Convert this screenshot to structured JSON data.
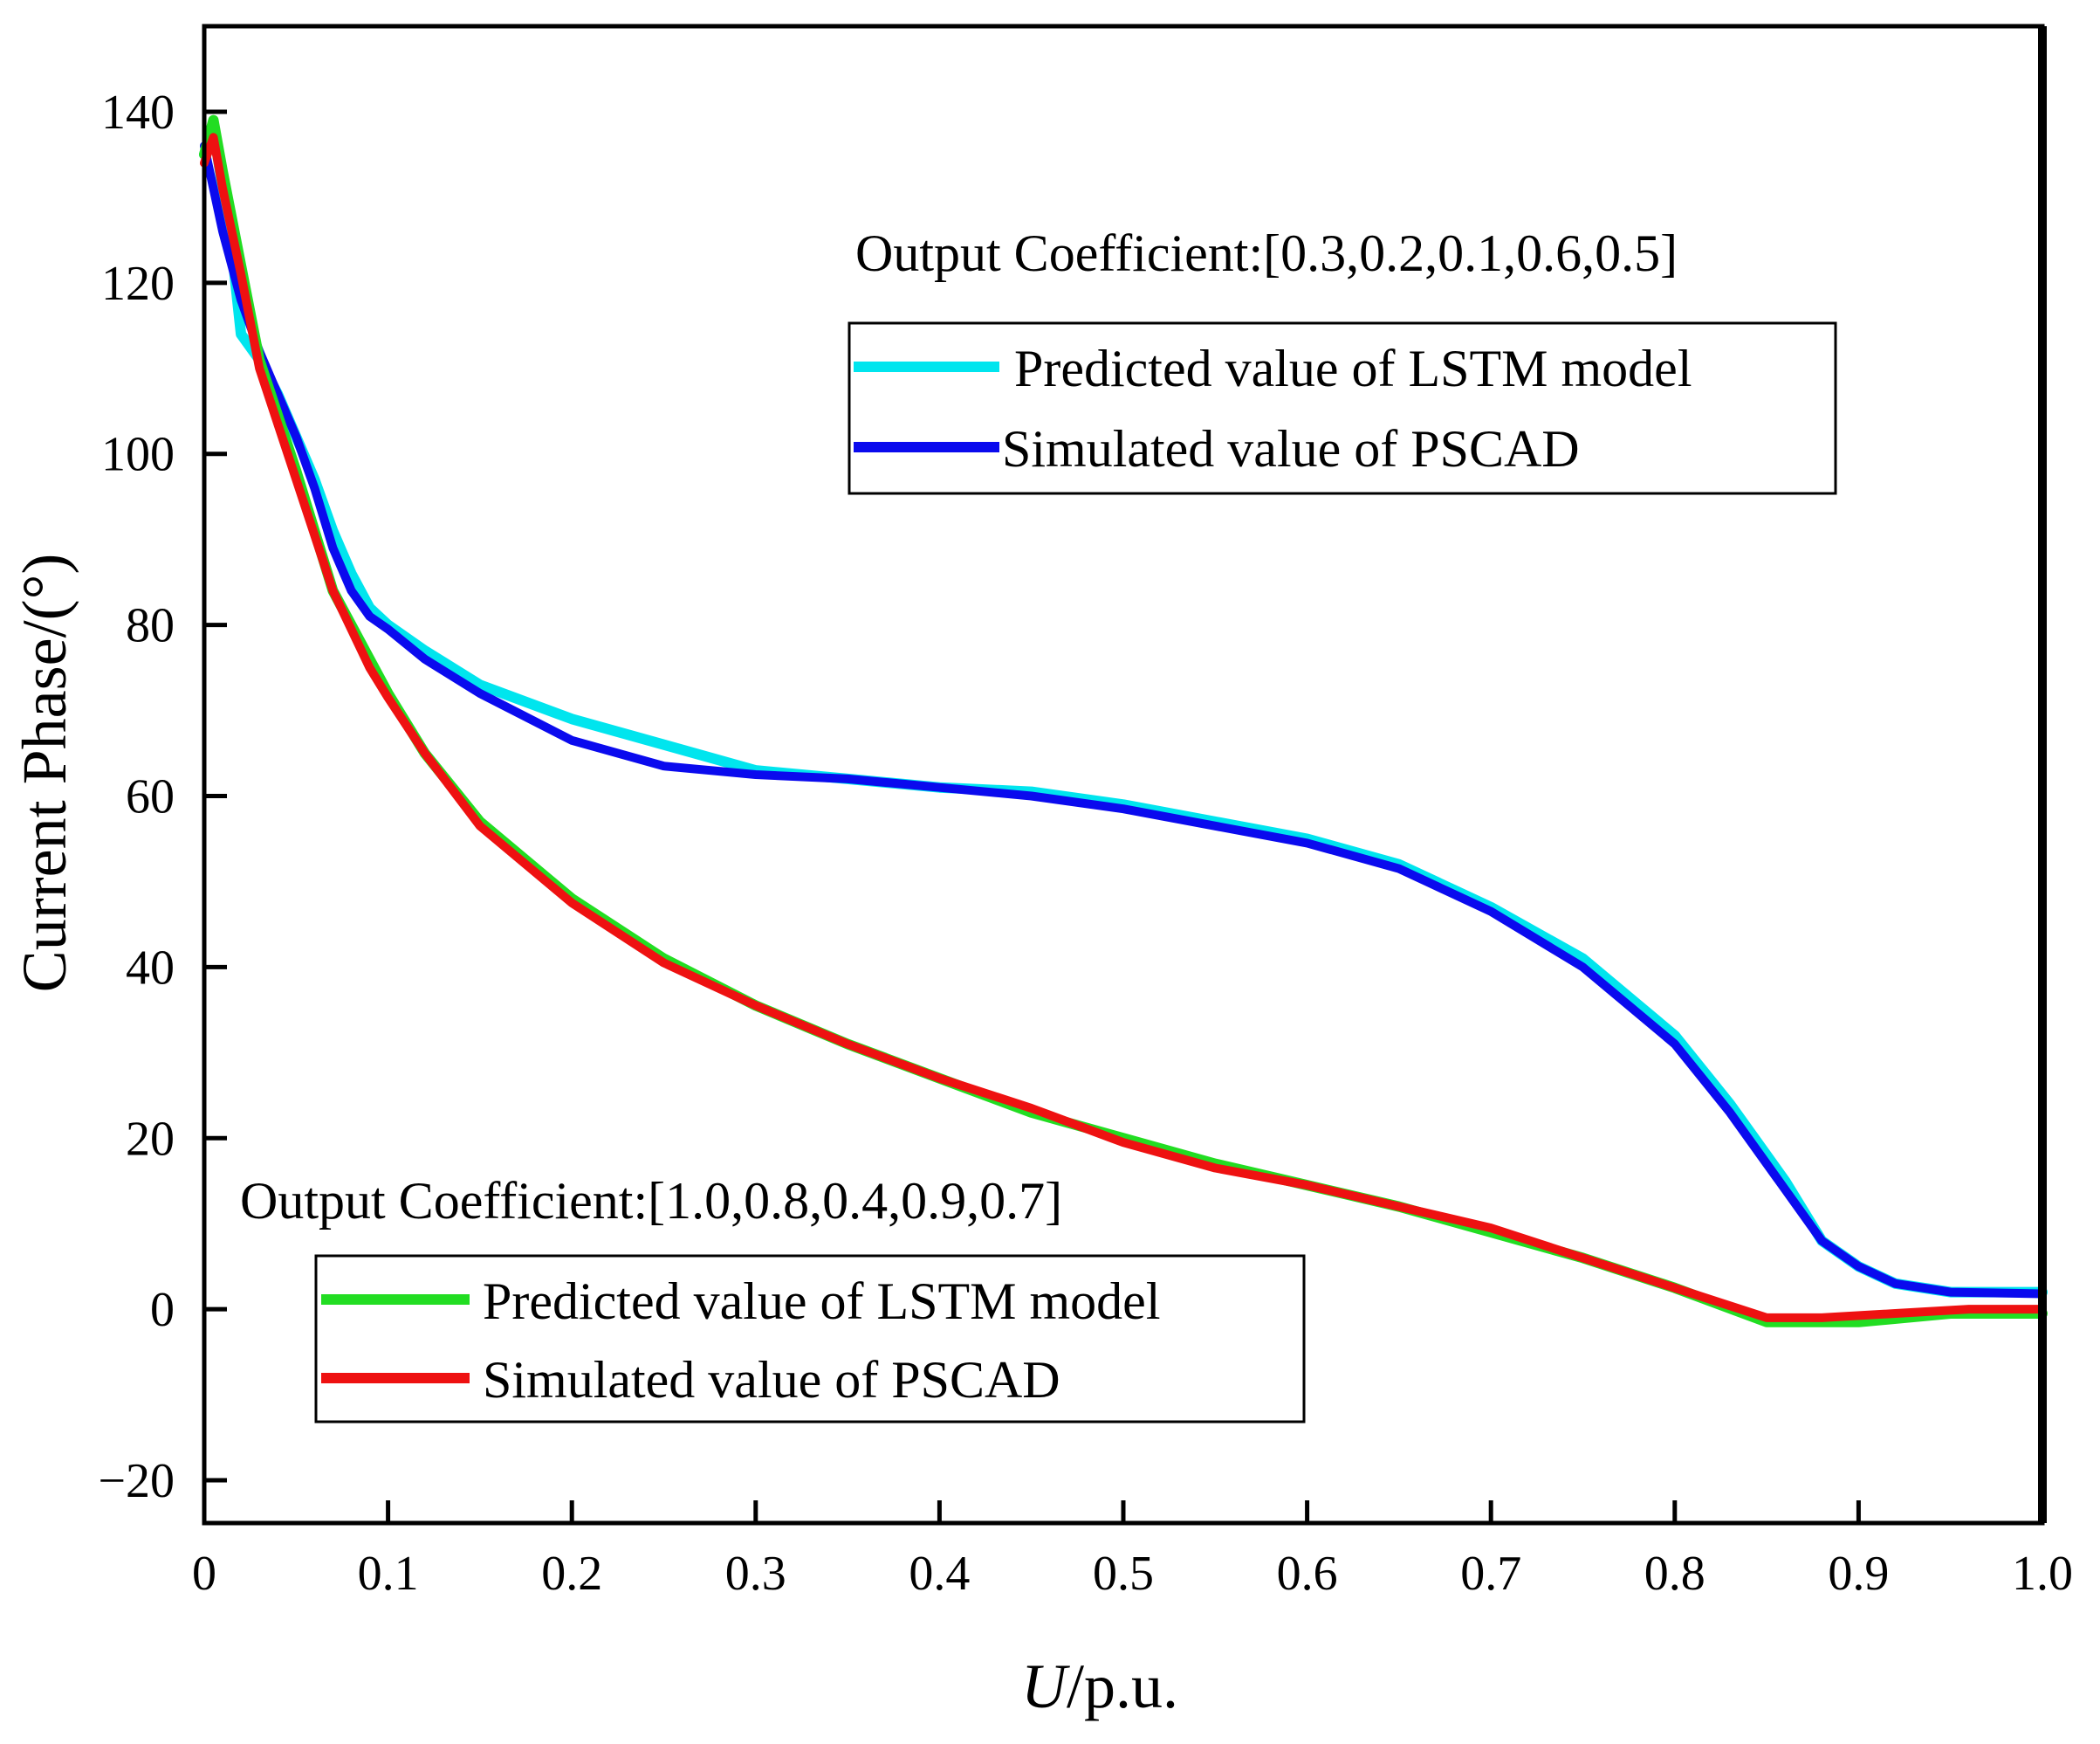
{
  "chart_data": {
    "type": "line",
    "title": "",
    "xlabel_italic": "U",
    "xlabel_rest": "/p.u.",
    "ylabel": "Current Phase/(°)",
    "xlim": [
      0,
      1.0
    ],
    "ylim": [
      -25,
      150
    ],
    "x_ticks": [
      0,
      0.1,
      0.2,
      0.3,
      0.4,
      0.5,
      0.6,
      0.7,
      0.8,
      0.9,
      1.0
    ],
    "x_tick_labels": [
      "0",
      "0.1",
      "0.2",
      "0.3",
      "0.4",
      "0.5",
      "0.6",
      "0.7",
      "0.8",
      "0.9",
      "1.0"
    ],
    "y_ticks": [
      -20,
      0,
      20,
      40,
      60,
      80,
      100,
      120,
      140
    ],
    "y_tick_labels": [
      "−20",
      "0",
      "20",
      "40",
      "60",
      "80",
      "100",
      "120",
      "140"
    ],
    "annotations": {
      "upper": "Output Coefficient:[0.3,0.2,0.1,0.6,0.5]",
      "lower": "Output Coefficient:[1.0,0.8,0.4,0.9,0.7]"
    },
    "legends": [
      {
        "entries": [
          {
            "label": "Predicted value of LSTM model",
            "color": "#00e5ee"
          },
          {
            "label": "Simulated value of PSCAD",
            "color": "#0a0aee"
          }
        ]
      },
      {
        "entries": [
          {
            "label": "Predicted value of LSTM model",
            "color": "#22dd22"
          },
          {
            "label": "Simulated value of PSCAD",
            "color": "#ee1111"
          }
        ]
      }
    ],
    "series": [
      {
        "name": "Predicted value of LSTM model (upper)",
        "color": "#00e5ee",
        "points": [
          [
            0,
            135
          ],
          [
            0.005,
            138
          ],
          [
            0.01,
            131
          ],
          [
            0.015,
            124
          ],
          [
            0.02,
            114
          ],
          [
            0.03,
            111
          ],
          [
            0.04,
            107
          ],
          [
            0.05,
            102
          ],
          [
            0.06,
            97
          ],
          [
            0.07,
            91
          ],
          [
            0.08,
            86
          ],
          [
            0.09,
            82
          ],
          [
            0.1,
            80
          ],
          [
            0.12,
            77
          ],
          [
            0.15,
            73
          ],
          [
            0.2,
            69
          ],
          [
            0.25,
            66
          ],
          [
            0.3,
            63
          ],
          [
            0.35,
            62
          ],
          [
            0.4,
            61
          ],
          [
            0.45,
            60.5
          ],
          [
            0.5,
            59
          ],
          [
            0.55,
            57
          ],
          [
            0.6,
            55
          ],
          [
            0.65,
            52
          ],
          [
            0.7,
            47
          ],
          [
            0.75,
            41
          ],
          [
            0.8,
            32
          ],
          [
            0.83,
            24
          ],
          [
            0.86,
            15
          ],
          [
            0.88,
            8
          ],
          [
            0.9,
            5
          ],
          [
            0.92,
            3
          ],
          [
            0.95,
            2
          ],
          [
            1.0,
            2
          ]
        ]
      },
      {
        "name": "Simulated value of PSCAD (upper)",
        "color": "#0a0aee",
        "points": [
          [
            0,
            136
          ],
          [
            0.01,
            126
          ],
          [
            0.02,
            118
          ],
          [
            0.03,
            112
          ],
          [
            0.04,
            107
          ],
          [
            0.05,
            102
          ],
          [
            0.06,
            96
          ],
          [
            0.07,
            89
          ],
          [
            0.08,
            84
          ],
          [
            0.09,
            81
          ],
          [
            0.1,
            79.5
          ],
          [
            0.12,
            76
          ],
          [
            0.15,
            72
          ],
          [
            0.2,
            66.5
          ],
          [
            0.25,
            63.5
          ],
          [
            0.3,
            62.5
          ],
          [
            0.35,
            62
          ],
          [
            0.4,
            61
          ],
          [
            0.45,
            60
          ],
          [
            0.5,
            58.5
          ],
          [
            0.55,
            56.5
          ],
          [
            0.6,
            54.5
          ],
          [
            0.65,
            51.5
          ],
          [
            0.7,
            46.5
          ],
          [
            0.75,
            40
          ],
          [
            0.8,
            31
          ],
          [
            0.83,
            23
          ],
          [
            0.86,
            14
          ],
          [
            0.88,
            8
          ],
          [
            0.9,
            5
          ],
          [
            0.92,
            3
          ],
          [
            0.95,
            2
          ],
          [
            1.0,
            1.8
          ]
        ]
      },
      {
        "name": "Predicted value of LSTM model (lower)",
        "color": "#22dd22",
        "points": [
          [
            0,
            135
          ],
          [
            0.005,
            139
          ],
          [
            0.01,
            133
          ],
          [
            0.02,
            122
          ],
          [
            0.03,
            111
          ],
          [
            0.05,
            98
          ],
          [
            0.07,
            84
          ],
          [
            0.09,
            76
          ],
          [
            0.1,
            72
          ],
          [
            0.12,
            65
          ],
          [
            0.15,
            57
          ],
          [
            0.2,
            48
          ],
          [
            0.25,
            41
          ],
          [
            0.3,
            35.5
          ],
          [
            0.35,
            31
          ],
          [
            0.4,
            27
          ],
          [
            0.45,
            23
          ],
          [
            0.5,
            20
          ],
          [
            0.55,
            17
          ],
          [
            0.6,
            14.5
          ],
          [
            0.65,
            12
          ],
          [
            0.7,
            9
          ],
          [
            0.75,
            6
          ],
          [
            0.8,
            2.5
          ],
          [
            0.85,
            -1.5
          ],
          [
            0.9,
            -1.5
          ],
          [
            0.95,
            -0.5
          ],
          [
            1.0,
            -0.5
          ]
        ]
      },
      {
        "name": "Simulated value of PSCAD (lower)",
        "color": "#ee1111",
        "points": [
          [
            0,
            134
          ],
          [
            0.005,
            137
          ],
          [
            0.01,
            131
          ],
          [
            0.02,
            121
          ],
          [
            0.03,
            110
          ],
          [
            0.05,
            97
          ],
          [
            0.07,
            84
          ],
          [
            0.09,
            75
          ],
          [
            0.1,
            71.5
          ],
          [
            0.12,
            65
          ],
          [
            0.15,
            56.5
          ],
          [
            0.2,
            47.5
          ],
          [
            0.25,
            40.5
          ],
          [
            0.3,
            35.5
          ],
          [
            0.35,
            31
          ],
          [
            0.4,
            27
          ],
          [
            0.45,
            23.5
          ],
          [
            0.5,
            19.5
          ],
          [
            0.55,
            16.5
          ],
          [
            0.6,
            14.5
          ],
          [
            0.65,
            12
          ],
          [
            0.7,
            9.5
          ],
          [
            0.75,
            6
          ],
          [
            0.8,
            2.5
          ],
          [
            0.85,
            -1
          ],
          [
            0.88,
            -1
          ],
          [
            0.92,
            -0.5
          ],
          [
            0.96,
            0
          ],
          [
            1.0,
            0
          ]
        ]
      }
    ]
  }
}
